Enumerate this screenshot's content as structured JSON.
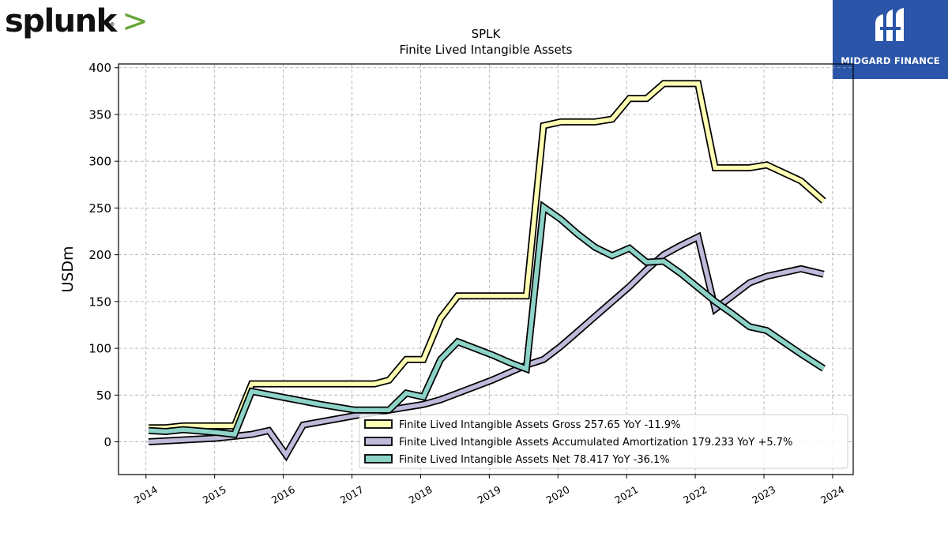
{
  "branding": {
    "left_logo_text": "splunk",
    "right_logo_text": "MIDGARD FINANCE"
  },
  "chart_data": {
    "type": "line",
    "title": "SPLK",
    "subtitle": "Finite Lived Intangible Assets",
    "xlabel": "",
    "ylabel": "USDm",
    "xlim": [
      2013.6,
      2024.3
    ],
    "ylim": [
      -35,
      404
    ],
    "x_ticks": [
      2014,
      2015,
      2016,
      2017,
      2018,
      2019,
      2020,
      2021,
      2022,
      2023,
      2024
    ],
    "y_ticks": [
      0,
      50,
      100,
      150,
      200,
      250,
      300,
      350,
      400
    ],
    "grid": true,
    "legend_position": "lower-right",
    "series": [
      {
        "name": "Finite Lived Intangible Assets Gross  257.65 YoY -11.9%",
        "color": "#ffffb3",
        "points": [
          [
            2014.04,
            15
          ],
          [
            2014.27,
            15
          ],
          [
            2014.54,
            17
          ],
          [
            2015.04,
            17
          ],
          [
            2015.29,
            17
          ],
          [
            2015.54,
            62
          ],
          [
            2016.04,
            62
          ],
          [
            2016.54,
            62
          ],
          [
            2017.04,
            62
          ],
          [
            2017.33,
            62
          ],
          [
            2017.54,
            66
          ],
          [
            2017.79,
            88
          ],
          [
            2018.04,
            88
          ],
          [
            2018.29,
            132
          ],
          [
            2018.54,
            156
          ],
          [
            2019.04,
            156
          ],
          [
            2019.29,
            156
          ],
          [
            2019.54,
            156
          ],
          [
            2019.79,
            338
          ],
          [
            2020.04,
            342
          ],
          [
            2020.29,
            342
          ],
          [
            2020.54,
            342
          ],
          [
            2020.79,
            345
          ],
          [
            2021.04,
            367
          ],
          [
            2021.29,
            367
          ],
          [
            2021.54,
            383
          ],
          [
            2021.79,
            383
          ],
          [
            2022.04,
            383
          ],
          [
            2022.29,
            293
          ],
          [
            2022.54,
            293
          ],
          [
            2022.79,
            293
          ],
          [
            2023.04,
            296
          ],
          [
            2023.54,
            279
          ],
          [
            2023.87,
            257.65
          ]
        ]
      },
      {
        "name": "Finite Lived Intangible Assets Accumulated Amortization  179.233 YoY +5.7%",
        "color": "#bebada",
        "points": [
          [
            2014.04,
            0
          ],
          [
            2015.04,
            4
          ],
          [
            2015.54,
            8
          ],
          [
            2015.79,
            12
          ],
          [
            2016.04,
            -14
          ],
          [
            2016.29,
            18
          ],
          [
            2017.04,
            28
          ],
          [
            2017.54,
            34
          ],
          [
            2017.79,
            37
          ],
          [
            2018.04,
            40
          ],
          [
            2018.29,
            45
          ],
          [
            2018.54,
            52
          ],
          [
            2019.04,
            66
          ],
          [
            2019.29,
            74
          ],
          [
            2019.54,
            82
          ],
          [
            2019.79,
            88
          ],
          [
            2020.04,
            102
          ],
          [
            2020.29,
            118
          ],
          [
            2020.54,
            134
          ],
          [
            2020.79,
            150
          ],
          [
            2021.04,
            166
          ],
          [
            2021.29,
            184
          ],
          [
            2021.54,
            200
          ],
          [
            2021.79,
            210
          ],
          [
            2022.04,
            219
          ],
          [
            2022.29,
            142
          ],
          [
            2022.54,
            156
          ],
          [
            2022.79,
            170
          ],
          [
            2023.04,
            177
          ],
          [
            2023.54,
            185
          ],
          [
            2023.87,
            179.233
          ]
        ]
      },
      {
        "name": "Finite Lived Intangible Assets Net  78.417 YoY -36.1%",
        "color": "#8dd3c7",
        "points": [
          [
            2014.04,
            12
          ],
          [
            2014.29,
            11
          ],
          [
            2014.54,
            13
          ],
          [
            2015.04,
            10
          ],
          [
            2015.29,
            8
          ],
          [
            2015.54,
            54
          ],
          [
            2016.04,
            47
          ],
          [
            2016.54,
            40
          ],
          [
            2017.04,
            34
          ],
          [
            2017.33,
            34
          ],
          [
            2017.54,
            34
          ],
          [
            2017.79,
            52
          ],
          [
            2018.04,
            48
          ],
          [
            2018.29,
            88
          ],
          [
            2018.54,
            107
          ],
          [
            2019.04,
            93
          ],
          [
            2019.29,
            85
          ],
          [
            2019.54,
            78
          ],
          [
            2019.79,
            251
          ],
          [
            2020.04,
            238
          ],
          [
            2020.29,
            222
          ],
          [
            2020.54,
            208
          ],
          [
            2020.79,
            199
          ],
          [
            2021.04,
            207
          ],
          [
            2021.29,
            192
          ],
          [
            2021.54,
            193
          ],
          [
            2021.79,
            180
          ],
          [
            2022.04,
            165
          ],
          [
            2022.29,
            150
          ],
          [
            2022.54,
            137
          ],
          [
            2022.79,
            123
          ],
          [
            2023.04,
            119
          ],
          [
            2023.54,
            94
          ],
          [
            2023.87,
            78.417
          ]
        ]
      }
    ]
  }
}
